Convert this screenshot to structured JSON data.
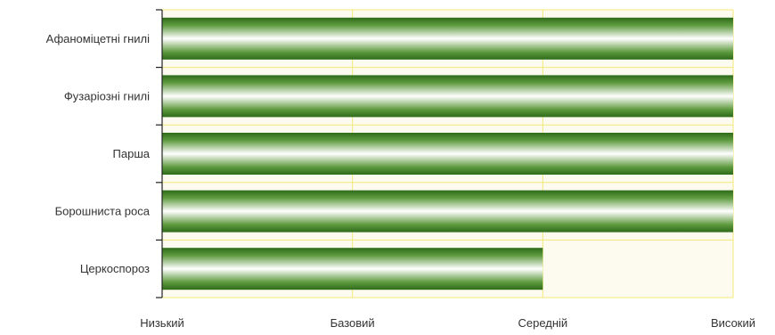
{
  "chart_data": {
    "type": "bar",
    "orientation": "horizontal",
    "categories": [
      "Афаноміцетні гнилі",
      "Фузаріозні гнилі",
      "Парша",
      "Борошниста роса",
      "Церкоспороз"
    ],
    "values": [
      3,
      3,
      3,
      3,
      2
    ],
    "xlim": [
      0,
      3
    ],
    "x_tick_labels": [
      "Низький",
      "Базовий",
      "Середній",
      "Високий"
    ],
    "title": "",
    "xlabel": "",
    "ylabel": "",
    "grid": true,
    "legend": "none"
  },
  "colors": {
    "bar_dark": "#2e6b1a",
    "bar_mid": "#5e9a3e",
    "bar_light": "#ffffff",
    "plot_background": "#fdfbef",
    "gridline": "#f2e97a",
    "axis": "#222222",
    "text": "#333333"
  }
}
